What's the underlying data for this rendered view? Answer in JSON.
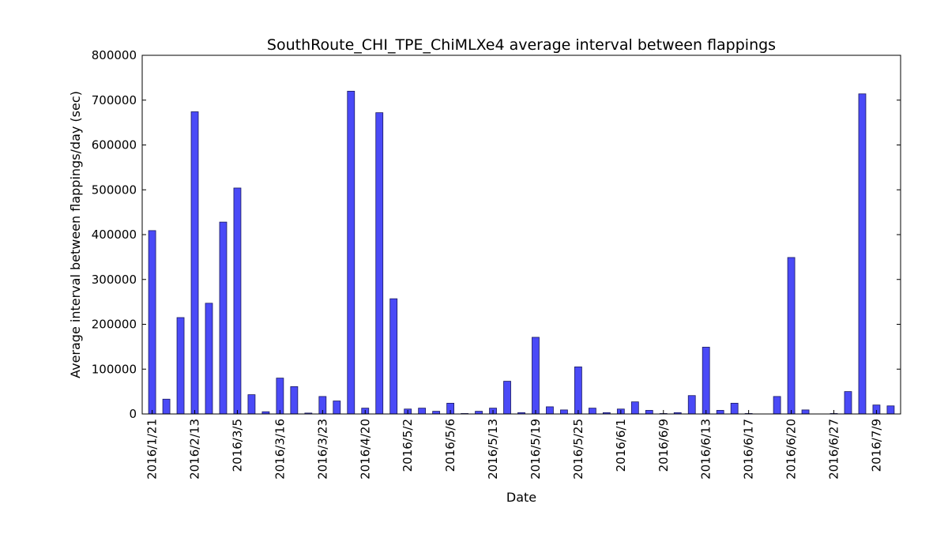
{
  "chart_data": {
    "type": "bar",
    "title": "SouthRoute_CHI_TPE_ChiMLXe4 average interval between flappings",
    "xlabel": "Date",
    "ylabel": "Average interval between flappings/day (sec)",
    "ylim": [
      0,
      800000
    ],
    "yticks": [
      0,
      100000,
      200000,
      300000,
      400000,
      500000,
      600000,
      700000,
      800000
    ],
    "xtick_labels": [
      "2016/1/21",
      "2016/2/13",
      "2016/3/5",
      "2016/3/16",
      "2016/3/23",
      "2016/4/20",
      "2016/5/2",
      "2016/5/6",
      "2016/5/13",
      "2016/5/19",
      "2016/5/25",
      "2016/6/1",
      "2016/6/9",
      "2016/6/13",
      "2016/6/17",
      "2016/6/20",
      "2016/6/27",
      "2016/7/9"
    ],
    "xtick_every": 3,
    "bar_color": "#4a4af7",
    "edge_color": "#1a1a60",
    "grid": false,
    "values": [
      409000,
      33000,
      215000,
      674000,
      247000,
      428000,
      504000,
      43000,
      5000,
      80000,
      61000,
      2000,
      39000,
      29000,
      720000,
      13000,
      672000,
      257000,
      11000,
      13000,
      6000,
      24000,
      1000,
      6000,
      13000,
      73000,
      3000,
      171000,
      16000,
      9000,
      105000,
      13000,
      3000,
      11000,
      27000,
      8000,
      1000,
      3000,
      41000,
      149000,
      8000,
      24000,
      1000,
      0,
      39000,
      349000,
      9000,
      0,
      1000,
      50000,
      714000,
      20000,
      18000
    ]
  }
}
